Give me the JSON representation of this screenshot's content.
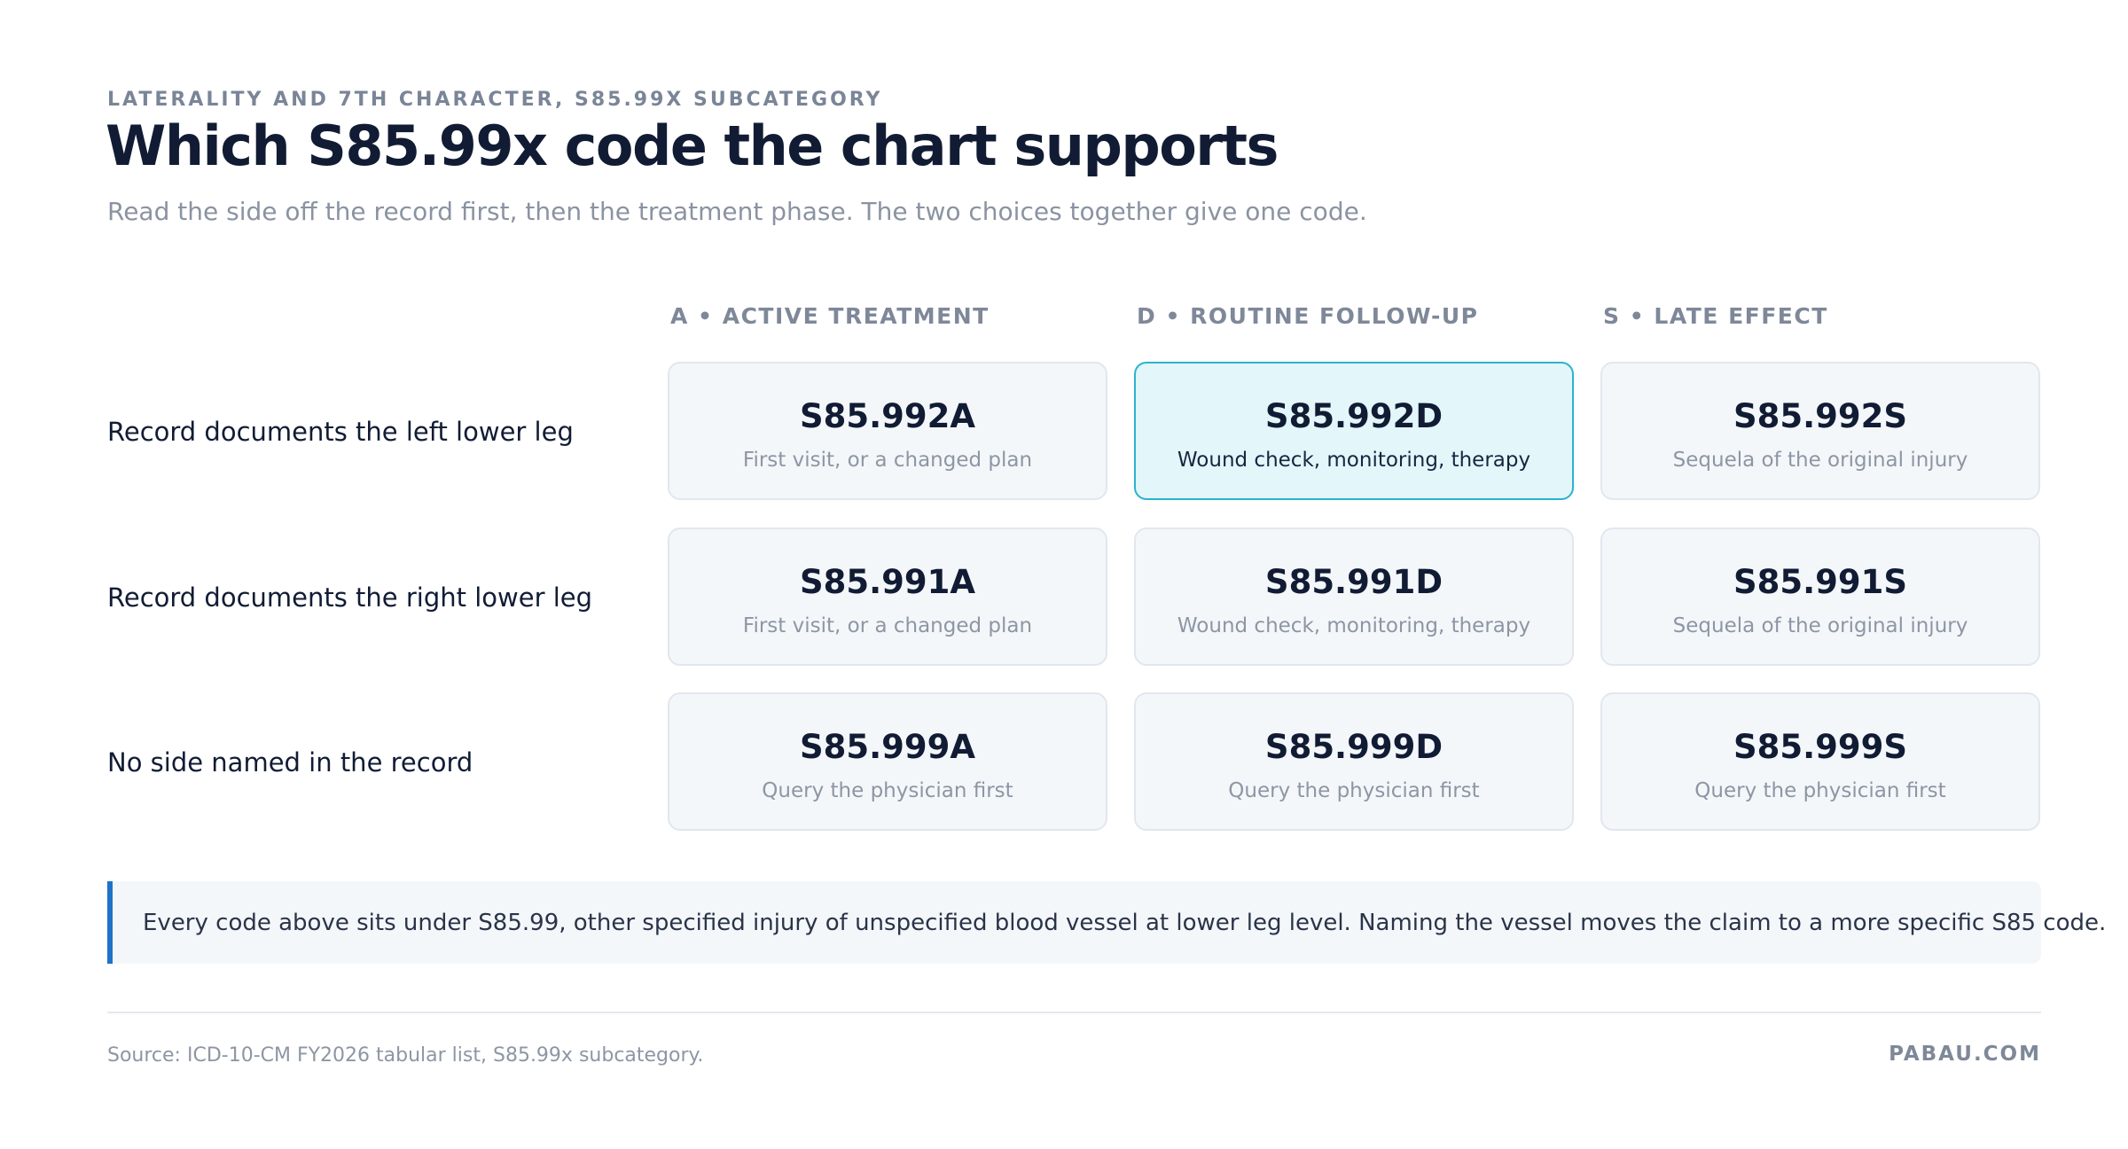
{
  "header": {
    "eyebrow": "LATERALITY AND 7TH CHARACTER, S85.99X SUBCATEGORY",
    "title": "Which S85.99x code the chart supports",
    "subtitle": "Read the side off the record first, then the treatment phase. The two choices together give one code."
  },
  "table": {
    "columns": [
      "A • ACTIVE TREATMENT",
      "D • ROUTINE FOLLOW-UP",
      "S • LATE EFFECT"
    ],
    "rows": [
      {
        "label": "Record documents the left lower leg",
        "cells": [
          {
            "code": "S85.992A",
            "description": "First visit, or a changed plan"
          },
          {
            "code": "S85.992D",
            "description": "Wound check, monitoring, therapy",
            "selected": true
          },
          {
            "code": "S85.992S",
            "description": "Sequela of the original injury"
          }
        ]
      },
      {
        "label": "Record documents the right lower leg",
        "cells": [
          {
            "code": "S85.991A",
            "description": "First visit, or a changed plan"
          },
          {
            "code": "S85.991D",
            "description": "Wound check, monitoring, therapy"
          },
          {
            "code": "S85.991S",
            "description": "Sequela of the original injury"
          }
        ]
      },
      {
        "label": "No side named in the record",
        "cells": [
          {
            "code": "S85.999A",
            "description": "Query the physician first"
          },
          {
            "code": "S85.999D",
            "description": "Query the physician first"
          },
          {
            "code": "S85.999S",
            "description": "Query the physician first"
          }
        ]
      }
    ]
  },
  "note": "Every code above sits under S85.99, other specified injury of unspecified blood vessel at lower leg level. Naming the vessel moves the claim to a more specific S85 code.",
  "footer": {
    "source": "Source: ICD-10-CM FY2026 tabular list, S85.99x subcategory.",
    "brand": "PABAU.COM"
  }
}
